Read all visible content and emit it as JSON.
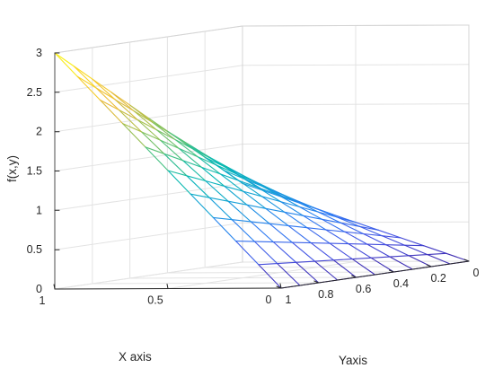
{
  "chart_data": {
    "type": "surface",
    "title": "",
    "xlabel": "X axis",
    "ylabel": "Yaxis",
    "zlabel": "f(x,y)",
    "function": "x + 2*x*y",
    "x": [
      0,
      0.1,
      0.2,
      0.3,
      0.4,
      0.5,
      0.6,
      0.7,
      0.8,
      0.9,
      1
    ],
    "y": [
      0,
      0.1,
      0.2,
      0.3,
      0.4,
      0.5,
      0.6,
      0.7,
      0.8,
      0.9,
      1
    ],
    "xlim": [
      0,
      1
    ],
    "ylim": [
      0,
      1
    ],
    "zlim": [
      0,
      3
    ],
    "x_ticks": [
      0,
      0.5,
      1
    ],
    "x_tick_labels": [
      "0",
      "0.5",
      "1"
    ],
    "y_ticks": [
      0,
      0.2,
      0.4,
      0.6,
      0.8,
      1
    ],
    "y_tick_labels": [
      "0",
      "0.2",
      "0.4",
      "0.6",
      "0.8",
      "1"
    ],
    "z_ticks": [
      0,
      0.5,
      1,
      1.5,
      2,
      2.5,
      3
    ],
    "z_tick_labels": [
      "0",
      "0.5",
      "1",
      "1.5",
      "2",
      "2.5",
      "3"
    ],
    "colormap": [
      "#3e26a8",
      "#4652e3",
      "#2b7bf3",
      "#15a0d8",
      "#07b8b4",
      "#4ac280",
      "#a5c04c",
      "#ebba3a",
      "#fad523",
      "#f9fb15"
    ],
    "grid": true
  }
}
